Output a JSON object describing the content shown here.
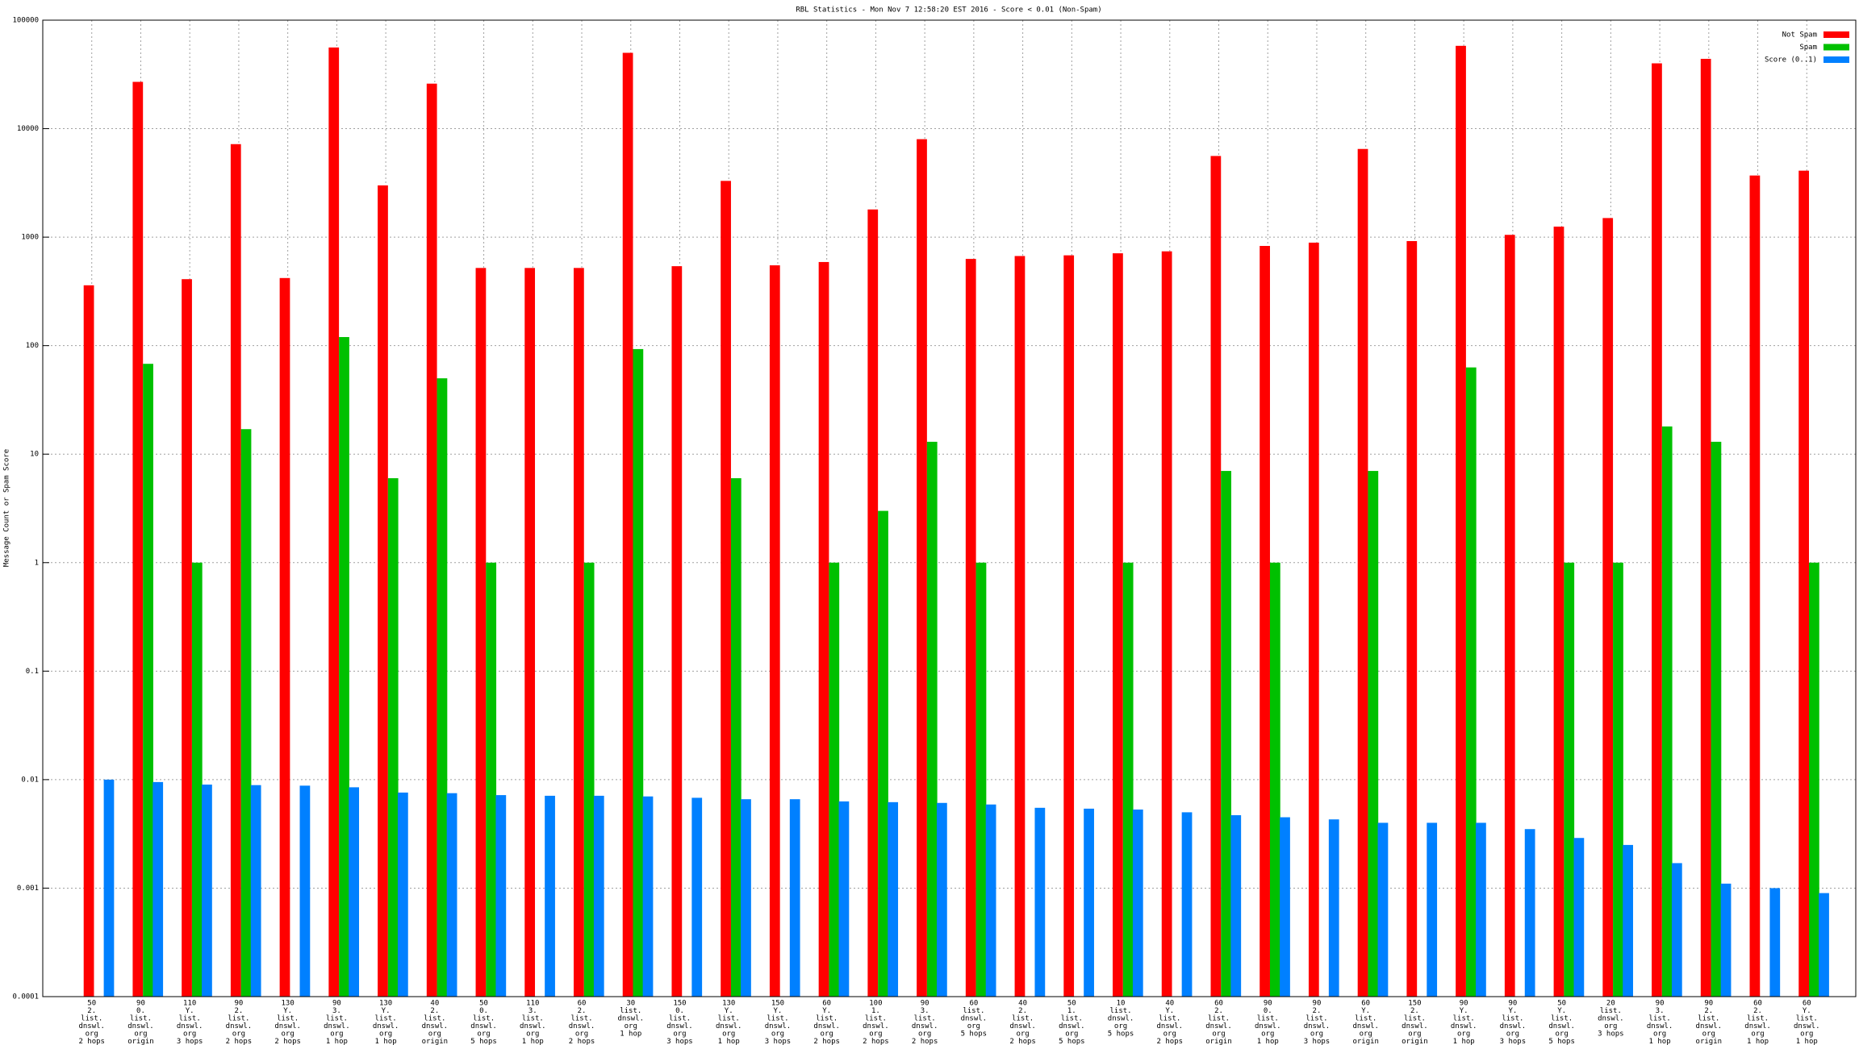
{
  "chart_data": {
    "type": "bar",
    "title": "RBL Statistics - Mon Nov  7 12:58:20 EST 2016 - Score < 0.01 (Non-Spam)",
    "y_label": "Message Count or Spam Score",
    "categories": [
      [
        "50",
        "2.",
        "list.",
        "dnswl.",
        "org",
        "2 hops"
      ],
      [
        "90",
        "0.",
        "list.",
        "dnswl.",
        "org",
        "origin"
      ],
      [
        "110",
        "Y.",
        "list.",
        "dnswl.",
        "org",
        "3 hops"
      ],
      [
        "90",
        "2.",
        "list.",
        "dnswl.",
        "org",
        "2 hops"
      ],
      [
        "130",
        "Y.",
        "list.",
        "dnswl.",
        "org",
        "2 hops"
      ],
      [
        "90",
        "3.",
        "list.",
        "dnswl.",
        "org",
        "1 hop"
      ],
      [
        "130",
        "Y.",
        "list.",
        "dnswl.",
        "org",
        "1 hop"
      ],
      [
        "40",
        "2.",
        "list.",
        "dnswl.",
        "org",
        "origin"
      ],
      [
        "50",
        "0.",
        "list.",
        "dnswl.",
        "org",
        "5 hops"
      ],
      [
        "110",
        "3.",
        "list.",
        "dnswl.",
        "org",
        "1 hop"
      ],
      [
        "60",
        "2.",
        "list.",
        "dnswl.",
        "org",
        "2 hops"
      ],
      [
        "30",
        "list.",
        "dnswl.",
        "org",
        "1 hop"
      ],
      [
        "150",
        "0.",
        "list.",
        "dnswl.",
        "org",
        "3 hops"
      ],
      [
        "130",
        "Y.",
        "list.",
        "dnswl.",
        "org",
        "1 hop"
      ],
      [
        "150",
        "Y.",
        "list.",
        "dnswl.",
        "org",
        "3 hops"
      ],
      [
        "60",
        "Y.",
        "list.",
        "dnswl.",
        "org",
        "2 hops"
      ],
      [
        "100",
        "1.",
        "list.",
        "dnswl.",
        "org",
        "2 hops"
      ],
      [
        "90",
        "3.",
        "list.",
        "dnswl.",
        "org",
        "2 hops"
      ],
      [
        "60",
        "list.",
        "dnswl.",
        "org",
        "5 hops"
      ],
      [
        "40",
        "2.",
        "list.",
        "dnswl.",
        "org",
        "2 hops"
      ],
      [
        "50",
        "1.",
        "list.",
        "dnswl.",
        "org",
        "5 hops"
      ],
      [
        "10",
        "list.",
        "dnswl.",
        "org",
        "5 hops"
      ],
      [
        "40",
        "Y.",
        "list.",
        "dnswl.",
        "org",
        "2 hops"
      ],
      [
        "60",
        "2.",
        "list.",
        "dnswl.",
        "org",
        "origin"
      ],
      [
        "90",
        "0.",
        "list.",
        "dnswl.",
        "org",
        "1 hop"
      ],
      [
        "90",
        "2.",
        "list.",
        "dnswl.",
        "org",
        "3 hops"
      ],
      [
        "60",
        "Y.",
        "list.",
        "dnswl.",
        "org",
        "origin"
      ],
      [
        "150",
        "2.",
        "list.",
        "dnswl.",
        "org",
        "origin"
      ],
      [
        "90",
        "Y.",
        "list.",
        "dnswl.",
        "org",
        "1 hop"
      ],
      [
        "90",
        "Y.",
        "list.",
        "dnswl.",
        "org",
        "3 hops"
      ],
      [
        "50",
        "Y.",
        "list.",
        "dnswl.",
        "org",
        "5 hops"
      ],
      [
        "20",
        "list.",
        "dnswl.",
        "org",
        "3 hops"
      ],
      [
        "90",
        "3.",
        "list.",
        "dnswl.",
        "org",
        "1 hop"
      ],
      [
        "90",
        "2.",
        "list.",
        "dnswl.",
        "org",
        "origin"
      ],
      [
        "60",
        "2.",
        "list.",
        "dnswl.",
        "org",
        "1 hop"
      ],
      [
        "60",
        "Y.",
        "list.",
        "dnswl.",
        "org",
        "1 hop"
      ]
    ],
    "series": [
      {
        "name": "Not Spam",
        "color": "#ff0000",
        "values": [
          360,
          27000,
          410,
          7200,
          420,
          56000,
          3000,
          26000,
          520,
          520,
          520,
          50000,
          540,
          3300,
          550,
          590,
          1800,
          8000,
          630,
          670,
          680,
          710,
          740,
          5600,
          830,
          890,
          6500,
          920,
          58000,
          1050,
          1250,
          1500,
          40000,
          44000,
          3700,
          4100
        ]
      },
      {
        "name": "Spam",
        "color": "#00c000",
        "values": [
          null,
          68,
          1,
          17,
          null,
          120,
          6,
          50,
          1,
          null,
          1,
          93,
          null,
          6,
          null,
          1,
          3,
          13,
          1,
          null,
          null,
          1,
          null,
          7,
          1,
          null,
          7,
          null,
          63,
          null,
          1,
          1,
          18,
          13,
          null,
          1
        ]
      },
      {
        "name": "Score (0..1)",
        "color": "#0080ff",
        "values": [
          0.01,
          0.0095,
          0.009,
          0.0089,
          0.0088,
          0.0085,
          0.0076,
          0.0075,
          0.0072,
          0.0071,
          0.0071,
          0.007,
          0.0068,
          0.0066,
          0.0066,
          0.0063,
          0.0062,
          0.0061,
          0.0059,
          0.0055,
          0.0054,
          0.0053,
          0.005,
          0.0047,
          0.0045,
          0.0043,
          0.004,
          0.004,
          0.004,
          0.0035,
          0.0029,
          0.0025,
          0.0017,
          0.0011,
          0.001,
          0.0009
        ]
      }
    ],
    "ylim": [
      0.0001,
      100000
    ],
    "yticks": [
      0.0001,
      0.001,
      0.01,
      0.1,
      1,
      10,
      100,
      1000,
      10000,
      100000
    ],
    "log_y": true,
    "grid": true,
    "legend": "top-right"
  }
}
